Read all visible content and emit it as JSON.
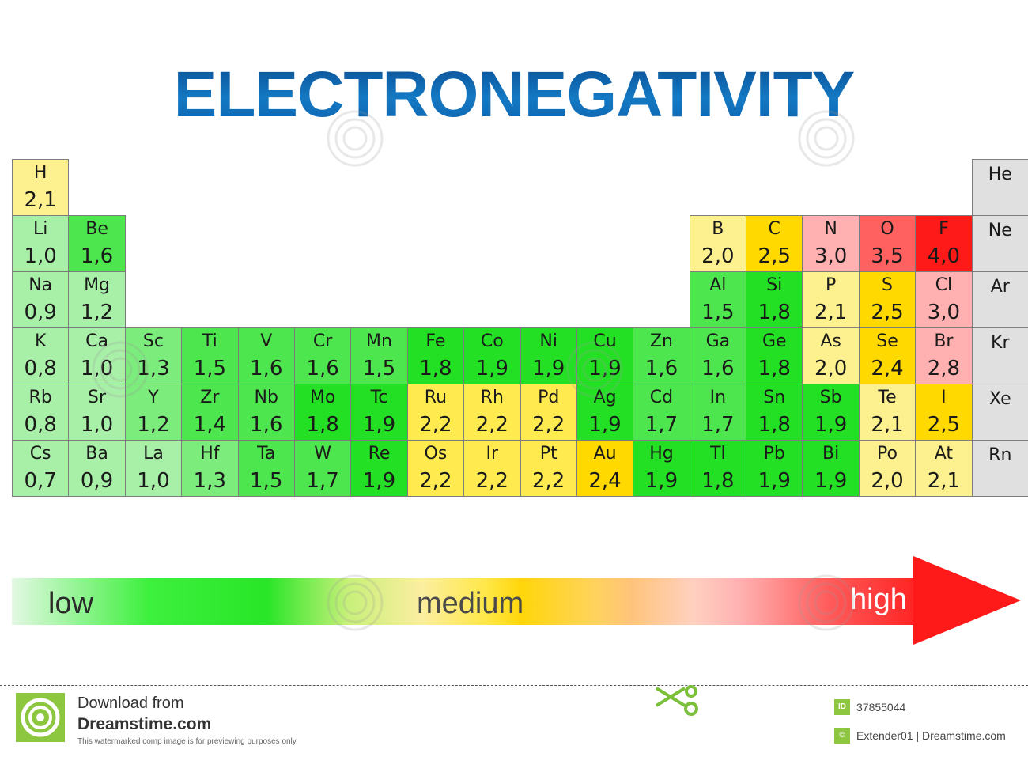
{
  "title": "ELECTRONEGATIVITY",
  "colors": {
    "pale_green": "#b0f0b0",
    "light_green": "#6ef06e",
    "green": "#24e024",
    "pale_yellow": "#fdf08e",
    "yellow": "#ffd900",
    "pink": "#ffb0b0",
    "salmon": "#ff6060",
    "red": "#ff1a1a",
    "noble_gray": "#e0e0e0",
    "title_blue": "#0a6bb5"
  },
  "elements": [
    {
      "symbol": "H",
      "en": "2,1",
      "row": 0,
      "col": 0,
      "color": "#fdf08e"
    },
    {
      "symbol": "He",
      "en": "",
      "row": 0,
      "col": 17,
      "color": "#e0e0e0"
    },
    {
      "symbol": "Li",
      "en": "1,0",
      "row": 1,
      "col": 0,
      "color": "#a8f0a8"
    },
    {
      "symbol": "Be",
      "en": "1,6",
      "row": 1,
      "col": 1,
      "color": "#4ee64e"
    },
    {
      "symbol": "B",
      "en": "2,0",
      "row": 1,
      "col": 12,
      "color": "#fdf08e"
    },
    {
      "symbol": "C",
      "en": "2,5",
      "row": 1,
      "col": 13,
      "color": "#ffd900"
    },
    {
      "symbol": "N",
      "en": "3,0",
      "row": 1,
      "col": 14,
      "color": "#ffb0b0"
    },
    {
      "symbol": "O",
      "en": "3,5",
      "row": 1,
      "col": 15,
      "color": "#ff6060"
    },
    {
      "symbol": "F",
      "en": "4,0",
      "row": 1,
      "col": 16,
      "color": "#ff1a1a"
    },
    {
      "symbol": "Ne",
      "en": "",
      "row": 1,
      "col": 17,
      "color": "#e0e0e0"
    },
    {
      "symbol": "Na",
      "en": "0,9",
      "row": 2,
      "col": 0,
      "color": "#a8f0a8"
    },
    {
      "symbol": "Mg",
      "en": "1,2",
      "row": 2,
      "col": 1,
      "color": "#a8f0a8"
    },
    {
      "symbol": "Al",
      "en": "1,5",
      "row": 2,
      "col": 12,
      "color": "#4ee64e"
    },
    {
      "symbol": "Si",
      "en": "1,8",
      "row": 2,
      "col": 13,
      "color": "#24e024"
    },
    {
      "symbol": "P",
      "en": "2,1",
      "row": 2,
      "col": 14,
      "color": "#fdf08e"
    },
    {
      "symbol": "S",
      "en": "2,5",
      "row": 2,
      "col": 15,
      "color": "#ffd900"
    },
    {
      "symbol": "Cl",
      "en": "3,0",
      "row": 2,
      "col": 16,
      "color": "#ffb0b0"
    },
    {
      "symbol": "Ar",
      "en": "",
      "row": 2,
      "col": 17,
      "color": "#e0e0e0"
    },
    {
      "symbol": "K",
      "en": "0,8",
      "row": 3,
      "col": 0,
      "color": "#a8f0a8"
    },
    {
      "symbol": "Ca",
      "en": "1,0",
      "row": 3,
      "col": 1,
      "color": "#a8f0a8"
    },
    {
      "symbol": "Sc",
      "en": "1,3",
      "row": 3,
      "col": 2,
      "color": "#7cec7c"
    },
    {
      "symbol": "Ti",
      "en": "1,5",
      "row": 3,
      "col": 3,
      "color": "#4ee64e"
    },
    {
      "symbol": "V",
      "en": "1,6",
      "row": 3,
      "col": 4,
      "color": "#4ee64e"
    },
    {
      "symbol": "Cr",
      "en": "1,6",
      "row": 3,
      "col": 5,
      "color": "#4ee64e"
    },
    {
      "symbol": "Mn",
      "en": "1,5",
      "row": 3,
      "col": 6,
      "color": "#4ee64e"
    },
    {
      "symbol": "Fe",
      "en": "1,8",
      "row": 3,
      "col": 7,
      "color": "#24e024"
    },
    {
      "symbol": "Co",
      "en": "1,9",
      "row": 3,
      "col": 8,
      "color": "#24e024"
    },
    {
      "symbol": "Ni",
      "en": "1,9",
      "row": 3,
      "col": 9,
      "color": "#24e024"
    },
    {
      "symbol": "Cu",
      "en": "1,9",
      "row": 3,
      "col": 10,
      "color": "#24e024"
    },
    {
      "symbol": "Zn",
      "en": "1,6",
      "row": 3,
      "col": 11,
      "color": "#4ee64e"
    },
    {
      "symbol": "Ga",
      "en": "1,6",
      "row": 3,
      "col": 12,
      "color": "#4ee64e"
    },
    {
      "symbol": "Ge",
      "en": "1,8",
      "row": 3,
      "col": 13,
      "color": "#24e024"
    },
    {
      "symbol": "As",
      "en": "2,0",
      "row": 3,
      "col": 14,
      "color": "#fdf08e"
    },
    {
      "symbol": "Se",
      "en": "2,4",
      "row": 3,
      "col": 15,
      "color": "#ffd900"
    },
    {
      "symbol": "Br",
      "en": "2,8",
      "row": 3,
      "col": 16,
      "color": "#ffb0b0"
    },
    {
      "symbol": "Kr",
      "en": "",
      "row": 3,
      "col": 17,
      "color": "#e0e0e0"
    },
    {
      "symbol": "Rb",
      "en": "0,8",
      "row": 4,
      "col": 0,
      "color": "#a8f0a8"
    },
    {
      "symbol": "Sr",
      "en": "1,0",
      "row": 4,
      "col": 1,
      "color": "#a8f0a8"
    },
    {
      "symbol": "Y",
      "en": "1,2",
      "row": 4,
      "col": 2,
      "color": "#7cec7c"
    },
    {
      "symbol": "Zr",
      "en": "1,4",
      "row": 4,
      "col": 3,
      "color": "#4ee64e"
    },
    {
      "symbol": "Nb",
      "en": "1,6",
      "row": 4,
      "col": 4,
      "color": "#4ee64e"
    },
    {
      "symbol": "Mo",
      "en": "1,8",
      "row": 4,
      "col": 5,
      "color": "#24e024"
    },
    {
      "symbol": "Tc",
      "en": "1,9",
      "row": 4,
      "col": 6,
      "color": "#24e024"
    },
    {
      "symbol": "Ru",
      "en": "2,2",
      "row": 4,
      "col": 7,
      "color": "#ffeb50"
    },
    {
      "symbol": "Rh",
      "en": "2,2",
      "row": 4,
      "col": 8,
      "color": "#ffeb50"
    },
    {
      "symbol": "Pd",
      "en": "2,2",
      "row": 4,
      "col": 9,
      "color": "#ffeb50"
    },
    {
      "symbol": "Ag",
      "en": "1,9",
      "row": 4,
      "col": 10,
      "color": "#24e024"
    },
    {
      "symbol": "Cd",
      "en": "1,7",
      "row": 4,
      "col": 11,
      "color": "#4ee64e"
    },
    {
      "symbol": "In",
      "en": "1,7",
      "row": 4,
      "col": 12,
      "color": "#4ee64e"
    },
    {
      "symbol": "Sn",
      "en": "1,8",
      "row": 4,
      "col": 13,
      "color": "#24e024"
    },
    {
      "symbol": "Sb",
      "en": "1,9",
      "row": 4,
      "col": 14,
      "color": "#24e024"
    },
    {
      "symbol": "Te",
      "en": "2,1",
      "row": 4,
      "col": 15,
      "color": "#fdf08e"
    },
    {
      "symbol": "I",
      "en": "2,5",
      "row": 4,
      "col": 16,
      "color": "#ffd900"
    },
    {
      "symbol": "Xe",
      "en": "",
      "row": 4,
      "col": 17,
      "color": "#e0e0e0"
    },
    {
      "symbol": "Cs",
      "en": "0,7",
      "row": 5,
      "col": 0,
      "color": "#a8f0a8"
    },
    {
      "symbol": "Ba",
      "en": "0,9",
      "row": 5,
      "col": 1,
      "color": "#a8f0a8"
    },
    {
      "symbol": "La",
      "en": "1,0",
      "row": 5,
      "col": 2,
      "color": "#a8f0a8"
    },
    {
      "symbol": "Hf",
      "en": "1,3",
      "row": 5,
      "col": 3,
      "color": "#7cec7c"
    },
    {
      "symbol": "Ta",
      "en": "1,5",
      "row": 5,
      "col": 4,
      "color": "#4ee64e"
    },
    {
      "symbol": "W",
      "en": "1,7",
      "row": 5,
      "col": 5,
      "color": "#4ee64e"
    },
    {
      "symbol": "Re",
      "en": "1,9",
      "row": 5,
      "col": 6,
      "color": "#24e024"
    },
    {
      "symbol": "Os",
      "en": "2,2",
      "row": 5,
      "col": 7,
      "color": "#ffeb50"
    },
    {
      "symbol": "Ir",
      "en": "2,2",
      "row": 5,
      "col": 8,
      "color": "#ffeb50"
    },
    {
      "symbol": "Pt",
      "en": "2,2",
      "row": 5,
      "col": 9,
      "color": "#ffeb50"
    },
    {
      "symbol": "Au",
      "en": "2,4",
      "row": 5,
      "col": 10,
      "color": "#ffd900"
    },
    {
      "symbol": "Hg",
      "en": "1,9",
      "row": 5,
      "col": 11,
      "color": "#24e024"
    },
    {
      "symbol": "Tl",
      "en": "1,8",
      "row": 5,
      "col": 12,
      "color": "#24e024"
    },
    {
      "symbol": "Pb",
      "en": "1,9",
      "row": 5,
      "col": 13,
      "color": "#24e024"
    },
    {
      "symbol": "Bi",
      "en": "1,9",
      "row": 5,
      "col": 14,
      "color": "#24e024"
    },
    {
      "symbol": "Po",
      "en": "2,0",
      "row": 5,
      "col": 15,
      "color": "#fdf08e"
    },
    {
      "symbol": "At",
      "en": "2,1",
      "row": 5,
      "col": 16,
      "color": "#fdf08e"
    },
    {
      "symbol": "Rn",
      "en": "",
      "row": 5,
      "col": 17,
      "color": "#e0e0e0"
    }
  ],
  "scale": {
    "low_label": "low",
    "medium_label": "medium",
    "high_label": "high",
    "arrow_color": "#ff1a1a"
  },
  "footer": {
    "download_text": "Download from",
    "brand": "Dreamstime.com",
    "note": "This watermarked comp image is for previewing purposes only.",
    "id_icon": "ID",
    "image_id": "37855044",
    "author_icon": "©",
    "author": "Extender01 | Dreamstime.com",
    "scissors_icon": "scissors-icon"
  }
}
